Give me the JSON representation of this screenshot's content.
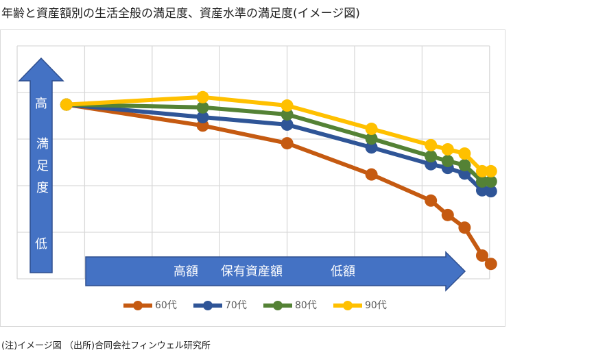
{
  "chart_data": {
    "type": "line",
    "title": "年齢と資産額別の生活全般の満足度、資産水準の満足度(イメージ図)",
    "y_label_high": "高",
    "ylabel": "満足度",
    "y_label_low": "低",
    "x_label_high": "高額",
    "xlabel": "保有資産額",
    "x_label_low": "低額",
    "source": "(注)イメージ図 （出所)合同会社フィンウェル研究所",
    "x": [
      0.73,
      2.75,
      4.0,
      5.25,
      6.13,
      6.38,
      6.63,
      6.89,
      7.02
    ],
    "series": [
      {
        "name": "60代",
        "color": "#c55a11",
        "values": [
          3.74,
          3.29,
          2.91,
          2.24,
          1.68,
          1.37,
          1.1,
          0.5,
          0.32
        ]
      },
      {
        "name": "70代",
        "color": "#2f5597",
        "values": [
          3.74,
          3.47,
          3.31,
          2.82,
          2.46,
          2.38,
          2.26,
          1.9,
          1.88
        ]
      },
      {
        "name": "80代",
        "color": "#548235",
        "values": [
          3.74,
          3.68,
          3.53,
          3.01,
          2.63,
          2.53,
          2.44,
          2.09,
          2.09
        ]
      },
      {
        "name": "90代",
        "color": "#ffc000",
        "values": [
          3.74,
          3.9,
          3.72,
          3.22,
          2.87,
          2.78,
          2.69,
          2.31,
          2.31
        ]
      }
    ],
    "xlim": [
      0,
      7.1
    ],
    "ylim": [
      0,
      5
    ],
    "xticks": [
      0,
      1,
      2,
      3,
      4,
      5,
      6,
      7
    ],
    "yticks": [
      0,
      1,
      2,
      3,
      4,
      5
    ],
    "grid": true,
    "legend": "bottom"
  }
}
